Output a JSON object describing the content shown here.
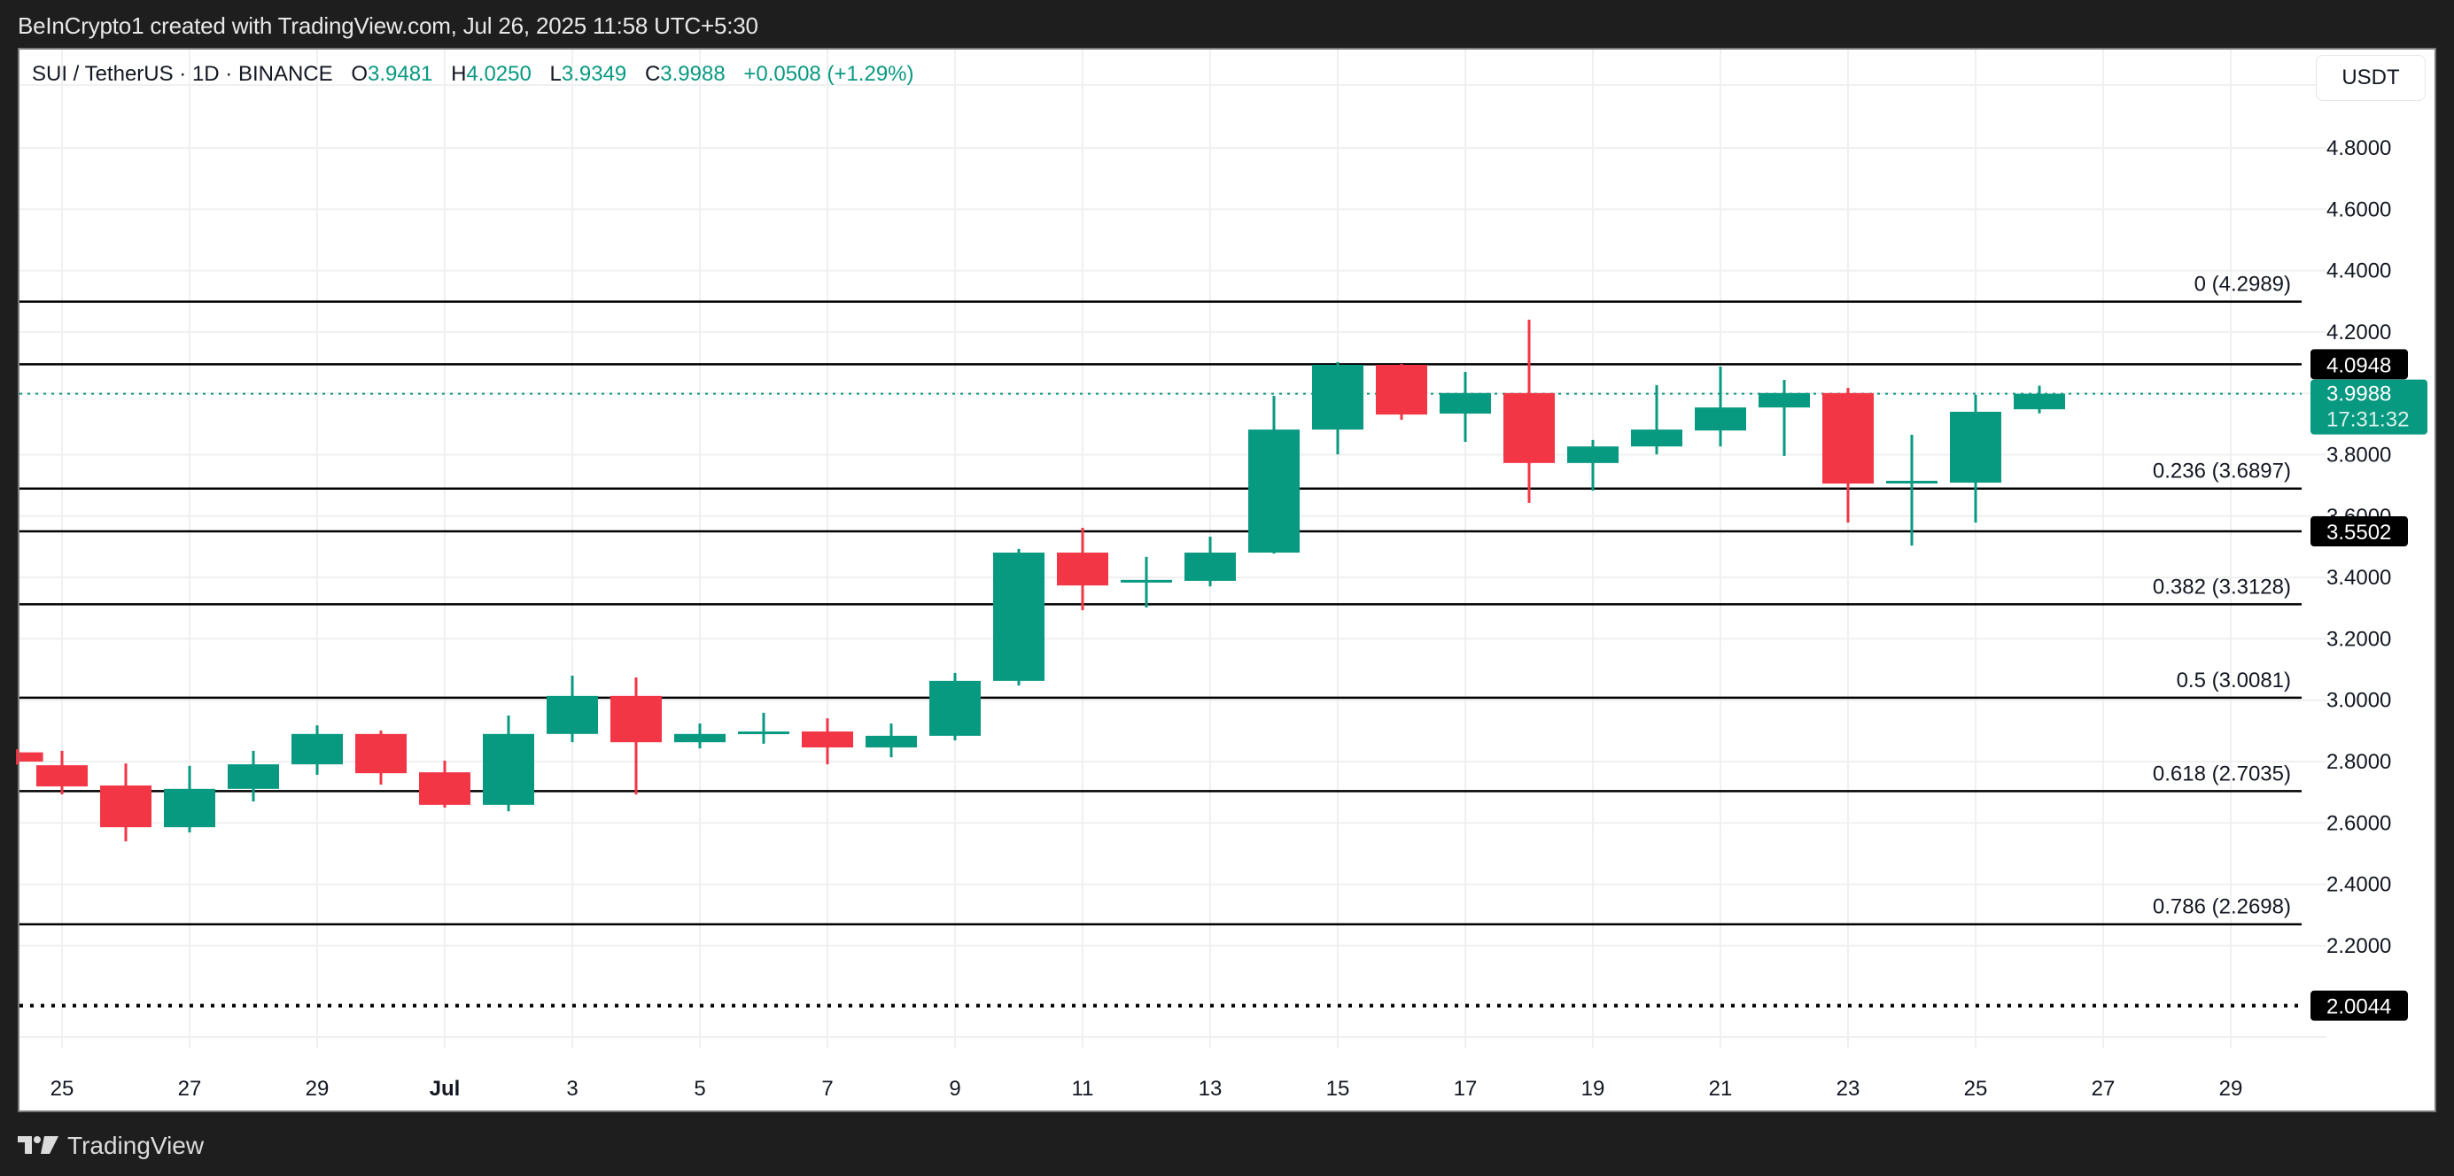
{
  "attribution": "BeInCrypto1 created with TradingView.com, Jul 26, 2025 11:58 UTC+5:30",
  "legend": {
    "symbol": "SUI / TetherUS · 1D · BINANCE",
    "open_label": "O",
    "open": "3.9481",
    "high_label": "H",
    "high": "4.0250",
    "low_label": "L",
    "low": "3.9349",
    "close_label": "C",
    "close": "3.9988",
    "change": "+0.0508 (+1.29%)"
  },
  "currency_button": "USDT",
  "footer": {
    "brand": "TradingView"
  },
  "colors": {
    "up": "#089981",
    "down": "#f23645",
    "grid": "#f0f0f0",
    "fib_line": "#000000",
    "frame": "#1e1e1e"
  },
  "price_badges": {
    "resistance": "4.0948",
    "current_price": "3.9988",
    "countdown": "17:31:32",
    "support": "3.5502",
    "low_dotted": "2.0044"
  },
  "chart_data": {
    "type": "candlestick",
    "title": "SUI / TetherUS · 1D · BINANCE",
    "xlabel": "",
    "ylabel": "USDT",
    "ylim": [
      1.75,
      4.97
    ],
    "grid": true,
    "y_ticks": [
      "4.8000",
      "4.6000",
      "4.4000",
      "4.2000",
      "4.0000",
      "3.8000",
      "3.6000",
      "3.4000",
      "3.2000",
      "3.0000",
      "2.8000",
      "2.6000",
      "2.4000",
      "2.2000"
    ],
    "y_tick_values": [
      4.8,
      4.6,
      4.4,
      4.2,
      4.0,
      3.8,
      3.6,
      3.4,
      3.2,
      3.0,
      2.8,
      2.6,
      2.4,
      2.2
    ],
    "x_ticks": [
      "25",
      "27",
      "29",
      "Jul",
      "3",
      "5",
      "7",
      "9",
      "11",
      "13",
      "15",
      "17",
      "19",
      "21",
      "23",
      "25",
      "27",
      "29"
    ],
    "x_tick_days": [
      0,
      2,
      4,
      6,
      8,
      10,
      12,
      14,
      16,
      18,
      20,
      22,
      24,
      26,
      28,
      30,
      32,
      34
    ],
    "candles": [
      {
        "date": "Jun 24",
        "d": -0.7,
        "o": 2.83,
        "h": 2.84,
        "l": 2.79,
        "c": 2.8
      },
      {
        "date": "Jun 25",
        "d": 0,
        "o": 2.788,
        "h": 2.835,
        "l": 2.693,
        "c": 2.719
      },
      {
        "date": "Jun 26",
        "d": 1,
        "o": 2.722,
        "h": 2.794,
        "l": 2.54,
        "c": 2.586
      },
      {
        "date": "Jun 27",
        "d": 2,
        "o": 2.586,
        "h": 2.786,
        "l": 2.569,
        "c": 2.711
      },
      {
        "date": "Jun 28",
        "d": 3,
        "o": 2.711,
        "h": 2.835,
        "l": 2.67,
        "c": 2.791
      },
      {
        "date": "Jun 29",
        "d": 4,
        "o": 2.791,
        "h": 2.918,
        "l": 2.757,
        "c": 2.89
      },
      {
        "date": "Jun 30",
        "d": 5,
        "o": 2.89,
        "h": 2.901,
        "l": 2.725,
        "c": 2.762
      },
      {
        "date": "Jul 1",
        "d": 6,
        "o": 2.765,
        "h": 2.803,
        "l": 2.65,
        "c": 2.659
      },
      {
        "date": "Jul 2",
        "d": 7,
        "o": 2.659,
        "h": 2.95,
        "l": 2.638,
        "c": 2.89
      },
      {
        "date": "Jul 3",
        "d": 8,
        "o": 2.89,
        "h": 3.08,
        "l": 2.863,
        "c": 3.014
      },
      {
        "date": "Jul 4",
        "d": 9,
        "o": 3.014,
        "h": 3.074,
        "l": 2.693,
        "c": 2.863
      },
      {
        "date": "Jul 5",
        "d": 10,
        "o": 2.863,
        "h": 2.924,
        "l": 2.843,
        "c": 2.89
      },
      {
        "date": "Jul 6",
        "d": 11,
        "o": 2.893,
        "h": 2.959,
        "l": 2.858,
        "c": 2.898
      },
      {
        "date": "Jul 7",
        "d": 12,
        "o": 2.898,
        "h": 2.941,
        "l": 2.791,
        "c": 2.846
      },
      {
        "date": "Jul 8",
        "d": 13,
        "o": 2.846,
        "h": 2.924,
        "l": 2.814,
        "c": 2.884
      },
      {
        "date": "Jul 9",
        "d": 14,
        "o": 2.884,
        "h": 3.089,
        "l": 2.869,
        "c": 3.063
      },
      {
        "date": "Jul 10",
        "d": 15,
        "o": 3.063,
        "h": 3.493,
        "l": 3.048,
        "c": 3.481
      },
      {
        "date": "Jul 11",
        "d": 16,
        "o": 3.481,
        "h": 3.562,
        "l": 3.293,
        "c": 3.374
      },
      {
        "date": "Jul 12",
        "d": 17,
        "o": 3.389,
        "h": 3.467,
        "l": 3.302,
        "c": 3.392
      },
      {
        "date": "Jul 13",
        "d": 18,
        "o": 3.389,
        "h": 3.533,
        "l": 3.371,
        "c": 3.481
      },
      {
        "date": "Jul 14",
        "d": 19,
        "o": 3.481,
        "h": 3.992,
        "l": 3.478,
        "c": 3.882
      },
      {
        "date": "Jul 15",
        "d": 20,
        "o": 3.882,
        "h": 4.102,
        "l": 3.801,
        "c": 4.093
      },
      {
        "date": "Jul 16",
        "d": 21,
        "o": 4.093,
        "h": 4.096,
        "l": 3.914,
        "c": 3.931
      },
      {
        "date": "Jul 17",
        "d": 22,
        "o": 3.934,
        "h": 4.07,
        "l": 3.842,
        "c": 4.001
      },
      {
        "date": "Jul 18",
        "d": 23,
        "o": 4.001,
        "h": 4.24,
        "l": 3.643,
        "c": 3.773
      },
      {
        "date": "Jul 19",
        "d": 24,
        "o": 3.773,
        "h": 3.848,
        "l": 3.683,
        "c": 3.827
      },
      {
        "date": "Jul 20",
        "d": 25,
        "o": 3.827,
        "h": 4.027,
        "l": 3.801,
        "c": 3.882
      },
      {
        "date": "Jul 21",
        "d": 26,
        "o": 3.879,
        "h": 4.087,
        "l": 3.827,
        "c": 3.954
      },
      {
        "date": "Jul 22",
        "d": 27,
        "o": 3.954,
        "h": 4.044,
        "l": 3.796,
        "c": 4.001
      },
      {
        "date": "Jul 23",
        "d": 28,
        "o": 4.001,
        "h": 4.018,
        "l": 3.579,
        "c": 3.706
      },
      {
        "date": "Jul 24",
        "d": 29,
        "o": 3.712,
        "h": 3.865,
        "l": 3.504,
        "c": 3.715
      },
      {
        "date": "Jul 25",
        "d": 30,
        "o": 3.709,
        "h": 3.995,
        "l": 3.579,
        "c": 3.94
      },
      {
        "date": "Jul 26",
        "d": 31,
        "o": 3.9481,
        "h": 4.025,
        "l": 3.9349,
        "c": 3.9988
      }
    ],
    "fibonacci": [
      {
        "level": "0",
        "price": 4.2989,
        "label": "0 (4.2989)"
      },
      {
        "level": "0.236",
        "price": 3.6897,
        "label": "0.236 (3.6897)"
      },
      {
        "level": "0.382",
        "price": 3.3128,
        "label": "0.382 (3.3128)"
      },
      {
        "level": "0.5",
        "price": 3.0081,
        "label": "0.5 (3.0081)"
      },
      {
        "level": "0.618",
        "price": 2.7035,
        "label": "0.618 (2.7035)"
      },
      {
        "level": "0.786",
        "price": 2.2698,
        "label": "0.786 (2.2698)"
      }
    ],
    "horizontal_lines": [
      {
        "price": 4.0948,
        "style": "solid",
        "label": "4.0948"
      },
      {
        "price": 3.5502,
        "style": "solid",
        "label": "3.5502"
      },
      {
        "price": 2.0044,
        "style": "dotted",
        "label": "2.0044"
      }
    ],
    "last_price_line": {
      "price": 3.9988,
      "style": "dotted",
      "color": "#089981"
    }
  }
}
